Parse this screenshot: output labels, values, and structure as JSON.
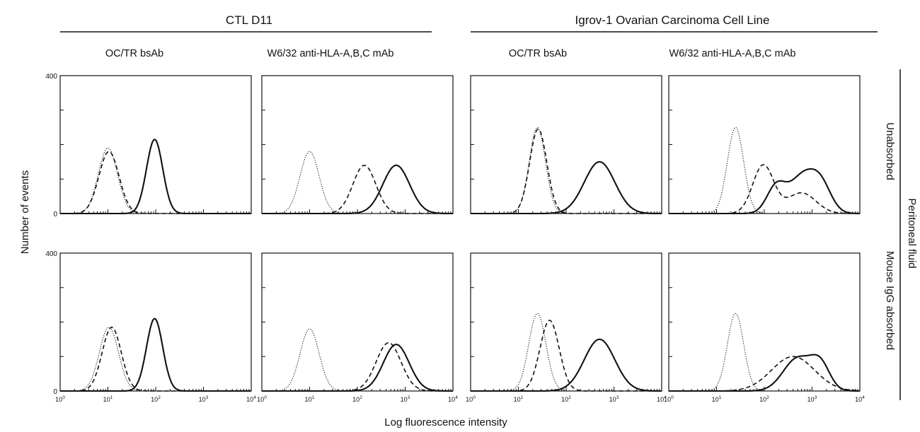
{
  "figure": {
    "groups": [
      {
        "title": "CTL D11"
      },
      {
        "title": "Igrov-1 Ovarian Carcinoma Cell Line"
      }
    ],
    "columns": [
      "OC/TR bsAb",
      "W6/32 anti-HLA-A,B,C mAb",
      "OC/TR bsAb",
      "W6/32 anti-HLA-A,B,C mAb"
    ],
    "rows": [
      "Unabsorbed",
      "Mouse IgG absorbed"
    ],
    "side_label": "Peritoneal fluid",
    "xlabel": "Log fluorescence intensity",
    "ylabel": "Number of events"
  },
  "colors": {
    "ink": "#111111",
    "background": "#ffffff"
  },
  "chart_data": {
    "type": "line",
    "x_scale": "log",
    "xlim": [
      1,
      10000
    ],
    "ylim": [
      0,
      400
    ],
    "y_ticks": [
      "0",
      "400"
    ],
    "x_ticks": [
      {
        "base": "10",
        "exp": "0"
      },
      {
        "base": "10",
        "exp": "1"
      },
      {
        "base": "10",
        "exp": "2"
      },
      {
        "base": "10",
        "exp": "3"
      },
      {
        "base": "10",
        "exp": "4"
      }
    ],
    "curve_styles": [
      "dotted",
      "dashed",
      "solid"
    ],
    "panels": [
      {
        "row": 0,
        "col": 0,
        "curves": [
          {
            "style": "dotted",
            "peaks": [
              {
                "center": 10,
                "height": 190,
                "width": 0.2
              }
            ]
          },
          {
            "style": "dashed",
            "peaks": [
              {
                "center": 10.5,
                "height": 180,
                "width": 0.21
              }
            ]
          },
          {
            "style": "solid",
            "peaks": [
              {
                "center": 95,
                "height": 215,
                "width": 0.17
              }
            ]
          }
        ]
      },
      {
        "row": 0,
        "col": 1,
        "curves": [
          {
            "style": "dotted",
            "peaks": [
              {
                "center": 10,
                "height": 180,
                "width": 0.2
              }
            ]
          },
          {
            "style": "dashed",
            "peaks": [
              {
                "center": 140,
                "height": 140,
                "width": 0.24
              }
            ]
          },
          {
            "style": "solid",
            "peaks": [
              {
                "center": 650,
                "height": 140,
                "width": 0.28
              }
            ]
          }
        ]
      },
      {
        "row": 0,
        "col": 2,
        "curves": [
          {
            "style": "dotted",
            "peaks": [
              {
                "center": 25,
                "height": 250,
                "width": 0.17
              }
            ]
          },
          {
            "style": "dashed",
            "peaks": [
              {
                "center": 26,
                "height": 245,
                "width": 0.18
              }
            ]
          },
          {
            "style": "solid",
            "peaks": [
              {
                "center": 500,
                "height": 150,
                "width": 0.32
              }
            ]
          }
        ]
      },
      {
        "row": 0,
        "col": 3,
        "curves": [
          {
            "style": "dotted",
            "peaks": [
              {
                "center": 25,
                "height": 250,
                "width": 0.17
              }
            ]
          },
          {
            "style": "dashed",
            "peaks": [
              {
                "center": 95,
                "height": 140,
                "width": 0.22
              },
              {
                "center": 600,
                "height": 60,
                "width": 0.3
              }
            ]
          },
          {
            "style": "solid",
            "peaks": [
              {
                "center": 180,
                "height": 80,
                "width": 0.2
              },
              {
                "center": 600,
                "height": 100,
                "width": 0.25
              },
              {
                "center": 1500,
                "height": 85,
                "width": 0.22
              }
            ]
          }
        ]
      },
      {
        "row": 1,
        "col": 0,
        "curves": [
          {
            "style": "dotted",
            "peaks": [
              {
                "center": 10.5,
                "height": 185,
                "width": 0.2
              }
            ]
          },
          {
            "style": "dashed",
            "peaks": [
              {
                "center": 12,
                "height": 185,
                "width": 0.2
              }
            ]
          },
          {
            "style": "solid",
            "peaks": [
              {
                "center": 95,
                "height": 210,
                "width": 0.17
              }
            ]
          }
        ]
      },
      {
        "row": 1,
        "col": 1,
        "curves": [
          {
            "style": "dotted",
            "peaks": [
              {
                "center": 10,
                "height": 180,
                "width": 0.2
              }
            ]
          },
          {
            "style": "dashed",
            "peaks": [
              {
                "center": 450,
                "height": 140,
                "width": 0.26
              }
            ]
          },
          {
            "style": "solid",
            "peaks": [
              {
                "center": 650,
                "height": 135,
                "width": 0.27
              }
            ]
          }
        ]
      },
      {
        "row": 1,
        "col": 2,
        "curves": [
          {
            "style": "dotted",
            "peaks": [
              {
                "center": 25,
                "height": 225,
                "width": 0.18
              }
            ]
          },
          {
            "style": "dashed",
            "peaks": [
              {
                "center": 45,
                "height": 205,
                "width": 0.2
              }
            ]
          },
          {
            "style": "solid",
            "peaks": [
              {
                "center": 500,
                "height": 150,
                "width": 0.32
              }
            ]
          }
        ]
      },
      {
        "row": 1,
        "col": 3,
        "curves": [
          {
            "style": "dotted",
            "peaks": [
              {
                "center": 25,
                "height": 225,
                "width": 0.17
              }
            ]
          },
          {
            "style": "dashed",
            "peaks": [
              {
                "center": 400,
                "height": 100,
                "width": 0.45
              }
            ]
          },
          {
            "style": "solid",
            "peaks": [
              {
                "center": 500,
                "height": 95,
                "width": 0.3
              },
              {
                "center": 1500,
                "height": 70,
                "width": 0.2
              }
            ]
          }
        ]
      }
    ]
  }
}
